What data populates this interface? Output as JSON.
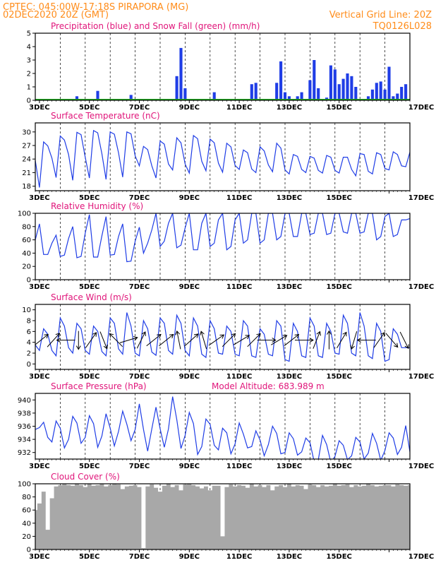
{
  "header": {
    "line1_left": "CPTEC:  045:00W-17:18S  PIRAPORA (MG)",
    "line2_left": "02DEC2020 20Z (GMT)",
    "line2_right": "Vertical Grid Line: 20Z",
    "line3_right": "TQ0126L028"
  },
  "colors": {
    "header": "#ff8c1a",
    "panel_title": "#e0157a",
    "series_line": "#1f3de6",
    "precip_bar": "#1f3de6",
    "snow_bar": "#22aa22",
    "cloud_fill": "#a8a8a8",
    "wind_arrow": "#000000"
  },
  "x_axis": {
    "labels": [
      "3DEC",
      "5DEC",
      "7DEC",
      "9DEC",
      "11DEC",
      "13DEC",
      "15DEC",
      "17DEC"
    ],
    "start": "02DEC2020 20Z",
    "end": "17DEC2020 20Z",
    "step_hours": 6
  },
  "chart_data": [
    {
      "type": "bar",
      "title": "Precipitation (blue) and Snow Fall (green) (mm/h)",
      "ylim": [
        0,
        5
      ],
      "yticks": [
        "0",
        "1",
        "2",
        "3",
        "4",
        "5"
      ],
      "series": [
        {
          "name": "Precipitation",
          "color": "#1f3de6",
          "values": [
            0,
            0,
            0,
            0,
            0,
            0,
            0,
            0,
            0,
            0,
            0.3,
            0.1,
            0,
            0,
            0,
            0.7,
            0,
            0,
            0,
            0,
            0,
            0,
            0,
            0.4,
            0,
            0,
            0,
            0,
            0,
            0,
            0,
            0,
            0,
            0,
            1.8,
            3.9,
            0.9,
            0,
            0,
            0,
            0,
            0,
            0,
            0.6,
            0,
            0,
            0,
            0,
            0,
            0,
            0,
            0,
            1.2,
            1.3,
            0,
            0,
            0,
            0.1,
            1.3,
            2.9,
            0.6,
            0.3,
            0,
            0.3,
            0.6,
            0,
            1.5,
            3.0,
            0.9,
            0,
            0.2,
            2.6,
            2.3,
            1.2,
            1.6,
            2.0,
            1.8,
            1.0,
            0,
            0,
            0.3,
            0.8,
            1.3,
            1.4,
            0.8,
            2.5,
            0.3,
            0.5,
            1.0,
            1.2
          ]
        },
        {
          "name": "Snow Fall",
          "color": "#22aa22",
          "values": [
            0,
            0,
            0,
            0,
            0,
            0,
            0,
            0,
            0,
            0,
            0,
            0,
            0,
            0,
            0,
            0,
            0,
            0,
            0,
            0,
            0,
            0,
            0,
            0,
            0,
            0,
            0,
            0,
            0,
            0,
            0,
            0,
            0,
            0,
            0,
            0,
            0,
            0,
            0,
            0,
            0,
            0,
            0,
            0,
            0,
            0,
            0,
            0,
            0,
            0,
            0,
            0,
            0,
            0,
            0,
            0,
            0,
            0,
            0,
            0,
            0,
            0,
            0,
            0,
            0,
            0,
            0,
            0,
            0,
            0,
            0,
            0,
            0,
            0,
            0,
            0,
            0,
            0,
            0,
            0,
            0,
            0,
            0,
            0,
            0,
            0,
            0,
            0,
            0,
            0,
            0
          ]
        }
      ]
    },
    {
      "type": "line",
      "title": "Surface Temperature (nC)",
      "ylim": [
        17,
        32
      ],
      "yticks": [
        "18",
        "21",
        "24",
        "27",
        "30"
      ],
      "series": [
        {
          "color": "#1f3de6",
          "values": [
            23.7,
            17.7,
            27.8,
            26.9,
            24.2,
            19.9,
            29.1,
            28.2,
            25.0,
            19.3,
            29.9,
            29.4,
            24.4,
            19.8,
            30.3,
            29.8,
            25.2,
            19.5,
            30.0,
            29.5,
            25.4,
            20.0,
            30.0,
            29.6,
            24.7,
            22.5,
            26.8,
            26.1,
            22.5,
            19.8,
            28.0,
            27.3,
            22.9,
            21.6,
            28.7,
            27.6,
            22.9,
            20.9,
            29.2,
            28.5,
            23.5,
            21.4,
            28.4,
            27.6,
            23.1,
            21.1,
            27.5,
            26.7,
            22.6,
            21.7,
            26.0,
            25.4,
            21.8,
            21.0,
            26.7,
            25.8,
            22.7,
            21.2,
            27.5,
            26.4,
            21.6,
            20.7,
            25.0,
            24.6,
            21.7,
            21.0,
            24.6,
            24.2,
            21.5,
            20.9,
            24.8,
            24.4,
            21.5,
            20.9,
            24.4,
            24.4,
            21.7,
            20.3,
            25.2,
            25.0,
            21.3,
            20.7,
            25.4,
            25.0,
            21.9,
            21.6,
            25.6,
            25.0,
            22.5,
            22.3,
            25.5
          ]
        }
      ]
    },
    {
      "type": "line",
      "title": "Relative Humidity (%)",
      "ylim": [
        0,
        100
      ],
      "yticks": [
        "0",
        "20",
        "40",
        "60",
        "80",
        "100"
      ],
      "series": [
        {
          "color": "#1f3de6",
          "values": [
            60,
            84,
            38,
            38,
            55,
            67,
            35,
            37,
            62,
            80,
            33,
            35,
            70,
            98,
            34,
            34,
            66,
            95,
            37,
            38,
            65,
            84,
            27,
            28,
            58,
            79,
            40,
            55,
            75,
            100,
            50,
            58,
            85,
            100,
            48,
            52,
            78,
            100,
            45,
            45,
            85,
            100,
            50,
            55,
            90,
            100,
            45,
            50,
            90,
            100,
            55,
            60,
            100,
            100,
            55,
            60,
            100,
            100,
            60,
            65,
            100,
            100,
            65,
            65,
            100,
            100,
            68,
            70,
            100,
            100,
            68,
            70,
            100,
            100,
            72,
            70,
            100,
            100,
            70,
            72,
            100,
            100,
            60,
            65,
            95,
            100,
            65,
            68,
            90,
            90,
            92
          ]
        }
      ]
    },
    {
      "type": "line",
      "title": "Surface Wind (m/s)",
      "ylim": [
        -1,
        11
      ],
      "yticks": [
        "0",
        "2",
        "4",
        "6",
        "8",
        "10"
      ],
      "series": [
        {
          "color": "#1f3de6",
          "values": [
            3.5,
            2.5,
            6.5,
            5.5,
            2.5,
            1.5,
            8.5,
            7.0,
            3.0,
            2.0,
            7.5,
            6.5,
            2.5,
            1.8,
            7.0,
            6.0,
            2.3,
            1.5,
            8.5,
            7.5,
            2.8,
            1.8,
            9.5,
            7.0,
            2.0,
            1.5,
            8.0,
            6.5,
            2.2,
            1.6,
            8.5,
            7.5,
            2.5,
            1.8,
            9.0,
            7.5,
            2.5,
            1.5,
            8.5,
            7.0,
            1.8,
            1.2,
            8.0,
            6.5,
            2.0,
            1.8,
            7.0,
            6.0,
            1.8,
            1.5,
            8.0,
            7.0,
            1.5,
            1.2,
            6.5,
            5.5,
            1.8,
            1.5,
            8.0,
            7.0,
            0.8,
            0.5,
            7.5,
            6.0,
            1.5,
            1.2,
            8.5,
            7.0,
            1.5,
            1.2,
            7.5,
            6.0,
            2.0,
            1.8,
            9.0,
            7.5,
            2.0,
            1.5,
            9.5,
            7.0,
            1.5,
            1.0,
            7.5,
            6.0,
            0.5,
            0.8,
            6.5,
            5.5,
            3.0,
            3.0,
            3.0
          ]
        }
      ],
      "wind_arrows": [
        {
          "dx": 1,
          "dy": -0.8
        },
        {
          "dx": 0.9,
          "dy": -1
        },
        {
          "dx": -1,
          "dy": 0
        },
        {
          "dx": 0,
          "dy": 1
        },
        {
          "dx": 0.7,
          "dy": -1
        },
        {
          "dx": 0.4,
          "dy": 1
        },
        {
          "dx": -0.7,
          "dy": -0.7
        },
        {
          "dx": 1,
          "dy": -0.3
        },
        {
          "dx": 0.5,
          "dy": -1
        },
        {
          "dx": 1,
          "dy": -0.8
        },
        {
          "dx": 1,
          "dy": -0.8
        },
        {
          "dx": -0.2,
          "dy": -1
        },
        {
          "dx": 1,
          "dy": -0.9
        },
        {
          "dx": -0.3,
          "dy": -1
        },
        {
          "dx": 1,
          "dy": -0.7
        },
        {
          "dx": 1,
          "dy": -1
        },
        {
          "dx": 1,
          "dy": -0.6
        },
        {
          "dx": 0.9,
          "dy": -0.9
        },
        {
          "dx": 1,
          "dy": 0
        },
        {
          "dx": 1,
          "dy": -0.6
        },
        {
          "dx": 0.9,
          "dy": -0.7
        },
        {
          "dx": 1,
          "dy": 0
        },
        {
          "dx": 0.4,
          "dy": -1
        },
        {
          "dx": 0,
          "dy": -1
        },
        {
          "dx": 0.6,
          "dy": -1
        },
        {
          "dx": -0.3,
          "dy": 1
        },
        {
          "dx": -1,
          "dy": 0
        },
        {
          "dx": 0.7,
          "dy": -1
        },
        {
          "dx": 0.6,
          "dy": 0.7
        },
        {
          "dx": 0.5,
          "dy": 1
        }
      ]
    },
    {
      "type": "line",
      "title": "Surface Pressure (hPa)",
      "annotation": "Model Altitude: 683.989 m",
      "ylim": [
        931,
        941
      ],
      "yticks": [
        "932",
        "934",
        "936",
        "938",
        "940"
      ],
      "series": [
        {
          "color": "#1f3de6",
          "values": [
            935.5,
            935.8,
            936.6,
            934.3,
            933.6,
            936.8,
            935.7,
            932.7,
            934.0,
            937.5,
            936.5,
            933.4,
            934.3,
            937.6,
            936.4,
            932.8,
            934.5,
            937.9,
            935.7,
            933.0,
            935.2,
            938.3,
            936.3,
            933.8,
            935.5,
            939.4,
            935.5,
            932.2,
            935.6,
            938.9,
            935.6,
            932.8,
            935.6,
            940.5,
            937.0,
            932.6,
            934.6,
            938.1,
            936.4,
            931.7,
            932.9,
            937.1,
            936.3,
            933.1,
            932.4,
            935.7,
            935.0,
            931.8,
            933.3,
            936.5,
            934.8,
            932.7,
            932.9,
            935.3,
            933.9,
            931.5,
            933.2,
            936.0,
            934.9,
            931.8,
            932.0,
            935.0,
            934.1,
            931.6,
            932.1,
            934.2,
            933.5,
            930.6,
            930.9,
            934.6,
            933.2,
            930.5,
            931.4,
            933.8,
            933.1,
            930.9,
            931.5,
            934.3,
            933.6,
            931.0,
            931.9,
            934.9,
            933.4,
            930.8,
            932.3,
            935.0,
            934.2,
            931.7,
            932.8,
            936.1,
            932.1
          ]
        }
      ]
    },
    {
      "type": "area",
      "title": "Cloud Cover (%)",
      "ylim": [
        0,
        100
      ],
      "yticks": [
        "0",
        "20",
        "40",
        "60",
        "80",
        "100"
      ],
      "series": [
        {
          "color": "#a8a8a8",
          "values": [
            60,
            70,
            88,
            30,
            78,
            96,
            98,
            100,
            98,
            97,
            100,
            98,
            95,
            100,
            97,
            98,
            100,
            96,
            98,
            100,
            99,
            92,
            96,
            97,
            98,
            95,
            2,
            96,
            99,
            94,
            88,
            97,
            100,
            95,
            98,
            90,
            99,
            100,
            98,
            96,
            93,
            96,
            90,
            97,
            97,
            20,
            95,
            99,
            96,
            98,
            97,
            94,
            100,
            96,
            98,
            95,
            98,
            90,
            96,
            98,
            95,
            100,
            96,
            98,
            97,
            92,
            99,
            98,
            95,
            98,
            96,
            97,
            100,
            97,
            98,
            99,
            95,
            98,
            96,
            97,
            100,
            98,
            96,
            97,
            98,
            98,
            96,
            99,
            98,
            97,
            98
          ]
        }
      ]
    }
  ]
}
